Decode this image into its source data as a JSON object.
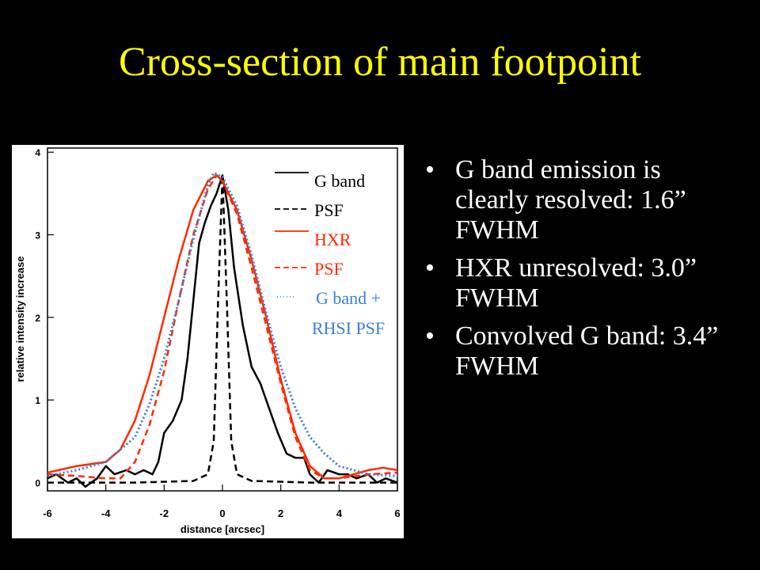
{
  "header": {
    "title": "Cross-section of main footpoint"
  },
  "bullets": [
    "G band emission is clearly resolved: 1.6” FWHM",
    "HXR unresolved: 3.0” FWHM",
    "Convolved G band: 3.4” FWHM"
  ],
  "chart_data": {
    "type": "line",
    "xlabel": "distance [arcsec]",
    "ylabel": "relative intensity increase",
    "xlim": [
      -6,
      6
    ],
    "ylim": [
      -0.1,
      4.05
    ],
    "xticks": [
      -6,
      -4,
      -2,
      0,
      2,
      4,
      6
    ],
    "yticks": [
      0,
      1,
      2,
      3,
      4
    ],
    "series": [
      {
        "name": "G band",
        "color": "#000000",
        "dash": "solid",
        "x": [
          -6,
          -5.7,
          -5.3,
          -5,
          -4.7,
          -4.3,
          -4,
          -3.7,
          -3.3,
          -3,
          -2.7,
          -2.4,
          -2.2,
          -2,
          -1.7,
          -1.4,
          -1.2,
          -1,
          -0.8,
          -0.6,
          -0.4,
          -0.2,
          0,
          0.2,
          0.4,
          0.7,
          1,
          1.3,
          1.6,
          1.9,
          2.2,
          2.5,
          2.8,
          3,
          3.3,
          3.6,
          4,
          4.3,
          4.6,
          5,
          5.3,
          5.6,
          6
        ],
        "values": [
          0.05,
          0.1,
          0.0,
          0.05,
          -0.05,
          0.05,
          0.2,
          0.1,
          0.15,
          0.1,
          0.15,
          0.1,
          0.25,
          0.6,
          0.75,
          1.0,
          1.5,
          2.2,
          2.9,
          3.15,
          3.35,
          3.5,
          3.72,
          3.3,
          2.6,
          1.9,
          1.4,
          1.2,
          0.9,
          0.6,
          0.35,
          0.3,
          0.3,
          0.1,
          0.0,
          0.15,
          0.1,
          0.1,
          0.05,
          0.1,
          0.0,
          0.05,
          0.0
        ]
      },
      {
        "name": "PSF",
        "color": "#000000",
        "dash": "dashed",
        "x": [
          -6,
          -3,
          -1,
          -0.5,
          -0.3,
          -0.15,
          0,
          0.15,
          0.3,
          0.5,
          1,
          3,
          6
        ],
        "values": [
          0.0,
          0.0,
          0.02,
          0.1,
          0.5,
          2.2,
          3.72,
          2.2,
          0.5,
          0.1,
          0.02,
          0.0,
          0.0
        ]
      },
      {
        "name": "HXR",
        "color": "#ff2a00",
        "dash": "solid",
        "x": [
          -6,
          -5,
          -4,
          -3.5,
          -3,
          -2.5,
          -2,
          -1.5,
          -1,
          -0.5,
          -0.2,
          0,
          0.5,
          1,
          1.5,
          2,
          2.5,
          3,
          3.5,
          4,
          4.5,
          5,
          5.5,
          6
        ],
        "values": [
          0.12,
          0.2,
          0.25,
          0.4,
          0.75,
          1.3,
          2.0,
          2.7,
          3.3,
          3.65,
          3.72,
          3.65,
          3.3,
          2.7,
          2.0,
          1.25,
          0.6,
          0.2,
          0.05,
          0.05,
          0.1,
          0.15,
          0.18,
          0.15
        ]
      },
      {
        "name": "PSF",
        "color": "#ff2a00",
        "dash": "dashed",
        "x": [
          -6,
          -5,
          -4,
          -3.5,
          -3,
          -2.5,
          -2,
          -1.5,
          -1,
          -0.5,
          -0.2,
          0,
          0.5,
          1,
          1.5,
          2,
          2.5,
          3,
          3.5,
          4,
          5,
          6
        ],
        "values": [
          0.1,
          0.08,
          0.05,
          0.05,
          0.25,
          0.7,
          1.35,
          2.2,
          3.0,
          3.55,
          3.72,
          3.65,
          3.25,
          2.6,
          1.9,
          1.2,
          0.55,
          0.15,
          0.05,
          0.05,
          0.1,
          0.12
        ]
      },
      {
        "name": "G band + RHSI PSF",
        "color": "#3a7fd5",
        "dash": "dotted",
        "x": [
          -6,
          -5,
          -4,
          -3,
          -2.5,
          -2,
          -1.5,
          -1,
          -0.5,
          -0.3,
          0,
          0.5,
          1,
          1.5,
          2,
          2.5,
          3,
          3.5,
          4,
          5,
          6
        ],
        "values": [
          0.08,
          0.15,
          0.25,
          0.55,
          0.95,
          1.5,
          2.2,
          2.95,
          3.6,
          3.75,
          3.7,
          3.35,
          2.75,
          2.05,
          1.4,
          0.9,
          0.55,
          0.35,
          0.2,
          0.1,
          0.08
        ]
      }
    ]
  }
}
